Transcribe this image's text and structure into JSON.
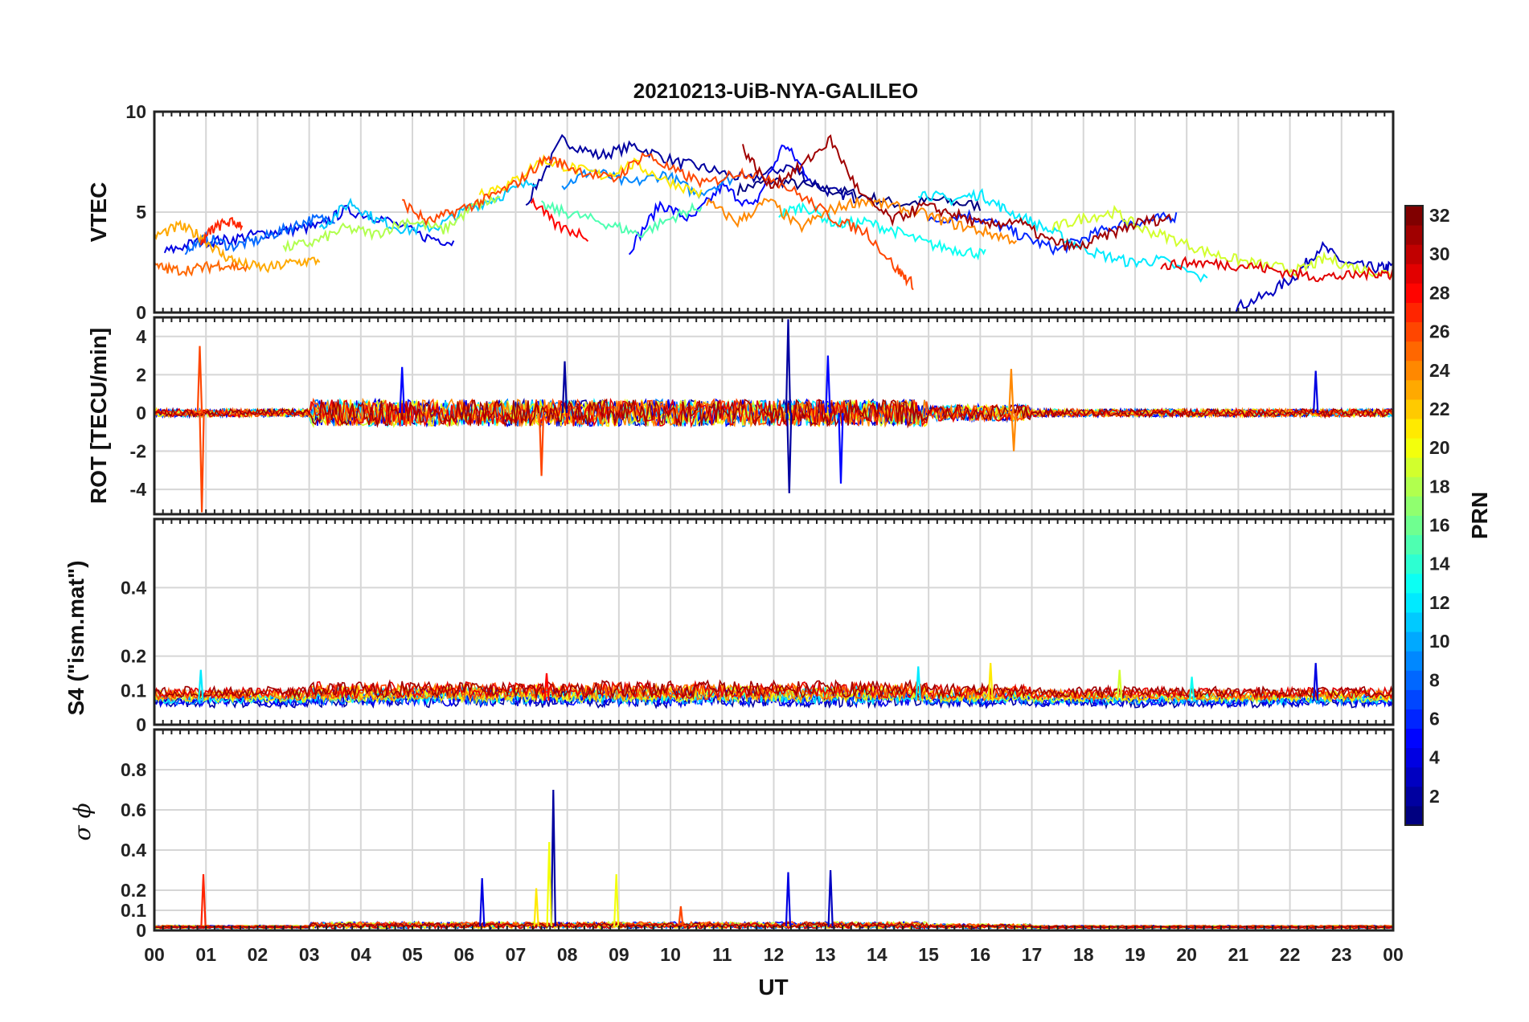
{
  "title": "20210213-UiB-NYA-GALILEO",
  "chart_data": [
    {
      "type": "line",
      "panel": "vtec",
      "ylabel": "VTEC",
      "ylim": [
        0,
        10
      ],
      "yticks": [
        0,
        5,
        10
      ],
      "grid": true,
      "series": [
        {
          "prn": 1,
          "x": [
            11.3,
            12.0,
            12.8,
            13.6,
            14.4,
            15.2,
            16.0
          ],
          "y": [
            6.1,
            6.6,
            6.2,
            5.9,
            5.4,
            5.6,
            5.3
          ]
        },
        {
          "prn": 2,
          "x": [
            7.2,
            7.9,
            8.6,
            9.3,
            10.1,
            10.8,
            11.5,
            12.3,
            13.0,
            13.6
          ],
          "y": [
            5.4,
            8.6,
            7.8,
            8.3,
            7.5,
            7.1,
            6.6,
            7.3,
            6.1,
            5.7
          ]
        },
        {
          "prn": 3,
          "x": [
            20.8,
            21.5,
            22.1,
            22.6,
            23.1,
            23.7,
            24.0
          ],
          "y": [
            0.1,
            0.8,
            1.8,
            3.3,
            2.4,
            2.2,
            2.3
          ]
        },
        {
          "prn": 4,
          "x": [
            0.2,
            0.8,
            1.4,
            2.0,
            2.6,
            3.2,
            3.7,
            4.4,
            5.2,
            5.8
          ],
          "y": [
            3.0,
            3.5,
            3.6,
            3.9,
            4.1,
            4.3,
            5.1,
            4.7,
            3.8,
            3.5
          ]
        },
        {
          "prn": 5,
          "x": [
            9.2,
            9.8,
            10.4,
            11.0,
            11.6,
            12.2,
            12.7
          ],
          "y": [
            3.1,
            5.4,
            4.6,
            6.3,
            5.2,
            8.4,
            6.7
          ]
        },
        {
          "prn": 6,
          "x": [
            15.0,
            15.7,
            16.3,
            16.9,
            17.5,
            18.1,
            18.7,
            19.3,
            19.8
          ],
          "y": [
            4.5,
            4.9,
            4.4,
            3.7,
            3.1,
            3.8,
            4.4,
            4.6,
            4.8
          ]
        },
        {
          "prn": 8,
          "x": [
            0.6,
            1.0,
            1.5,
            2.0,
            2.5,
            3.0,
            3.5
          ],
          "y": [
            3.1,
            3.7,
            3.3,
            3.6,
            4.1,
            4.6,
            4.7
          ]
        },
        {
          "prn": 9,
          "x": [
            7.9,
            8.5,
            9.2,
            9.9,
            10.5,
            11.2
          ],
          "y": [
            6.3,
            7.1,
            6.4,
            6.9,
            5.9,
            6.7
          ]
        },
        {
          "prn": 11,
          "x": [
            3.2,
            3.8,
            4.3,
            4.9,
            5.5,
            6.1,
            6.7,
            7.4
          ],
          "y": [
            4.2,
            5.5,
            4.6,
            4.1,
            4.3,
            5.2,
            5.8,
            6.6
          ]
        },
        {
          "prn": 12,
          "x": [
            14.8,
            15.4,
            16.0,
            16.5,
            17.1,
            17.7,
            18.3,
            18.9,
            19.5,
            20.4
          ],
          "y": [
            6.0,
            5.6,
            5.9,
            5.1,
            4.4,
            3.6,
            2.9,
            2.5,
            2.6,
            1.6
          ]
        },
        {
          "prn": 13,
          "x": [
            12.1,
            12.6,
            13.2,
            13.8,
            14.4,
            15.0,
            15.6,
            16.1
          ],
          "y": [
            4.9,
            5.3,
            4.4,
            4.5,
            4.0,
            3.4,
            3.1,
            2.9
          ]
        },
        {
          "prn": 15,
          "x": [
            7.5,
            8.1,
            8.8,
            9.4,
            10.1,
            10.6
          ],
          "y": [
            5.3,
            4.9,
            4.4,
            3.9,
            4.8,
            5.3
          ]
        },
        {
          "prn": 18,
          "x": [
            2.5,
            3.1,
            3.7,
            4.3,
            4.9,
            5.6,
            6.2,
            6.7
          ],
          "y": [
            3.2,
            3.5,
            4.2,
            3.9,
            4.6,
            4.1,
            5.3,
            5.7
          ]
        },
        {
          "prn": 19,
          "x": [
            17.4,
            18.0,
            18.6,
            19.1,
            19.7,
            20.4,
            21.0,
            21.6,
            22.2,
            22.7,
            23.3,
            24.0
          ],
          "y": [
            4.2,
            4.7,
            5.0,
            4.2,
            3.7,
            3.0,
            2.6,
            2.3,
            2.1,
            2.7,
            2.2,
            1.9
          ]
        },
        {
          "prn": 21,
          "x": [
            6.3,
            6.9,
            7.5,
            8.1,
            8.7,
            9.3,
            9.9,
            10.6
          ],
          "y": [
            6.0,
            6.4,
            7.6,
            7.2,
            6.8,
            7.4,
            6.6,
            5.9
          ]
        },
        {
          "prn": 23,
          "x": [
            0.0,
            0.5,
            0.9,
            1.3,
            1.7,
            2.2,
            2.7,
            3.2
          ],
          "y": [
            3.8,
            4.3,
            3.8,
            2.9,
            2.4,
            2.2,
            2.5,
            2.6
          ]
        },
        {
          "prn": 24,
          "x": [
            10.7,
            11.3,
            11.9,
            12.5,
            13.1,
            13.7,
            14.3,
            14.9,
            15.5,
            16.1,
            16.7
          ],
          "y": [
            5.5,
            4.5,
            5.6,
            4.2,
            5.1,
            5.6,
            5.3,
            4.9,
            4.4,
            4.0,
            3.6
          ]
        },
        {
          "prn": 25,
          "x": [
            0.0,
            0.4,
            0.9,
            1.3,
            1.8
          ],
          "y": [
            2.3,
            2.1,
            2.2,
            2.4,
            2.2
          ]
        },
        {
          "prn": 26,
          "x": [
            4.8,
            5.3,
            5.9,
            6.4,
            7.0,
            7.6,
            8.2,
            8.9,
            9.5,
            10.1,
            10.7,
            11.3,
            11.9,
            12.6,
            13.2,
            13.8,
            14.4,
            14.7
          ],
          "y": [
            5.5,
            4.5,
            5.1,
            5.6,
            6.4,
            7.7,
            7.1,
            6.6,
            7.9,
            7.0,
            6.4,
            7.0,
            6.8,
            5.7,
            4.6,
            4.0,
            2.1,
            1.4
          ]
        },
        {
          "prn": 27,
          "x": [
            0.9,
            1.1,
            1.4,
            1.7
          ],
          "y": [
            3.4,
            4.1,
            4.5,
            4.4
          ]
        },
        {
          "prn": 28,
          "x": [
            7.3,
            7.8,
            8.4
          ],
          "y": [
            5.6,
            4.3,
            3.8
          ]
        },
        {
          "prn": 29,
          "x": [
            19.5,
            20.1,
            20.7,
            21.3,
            21.9,
            22.5,
            23.1,
            23.7,
            24.0
          ],
          "y": [
            2.3,
            2.5,
            2.4,
            2.3,
            2.0,
            1.8,
            1.8,
            2.0,
            1.9
          ]
        },
        {
          "prn": 31,
          "x": [
            11.4,
            11.9,
            12.5,
            13.1,
            13.7,
            14.3,
            14.9,
            15.5,
            16.1,
            16.7,
            17.3,
            17.9,
            18.5,
            19.1,
            19.7
          ],
          "y": [
            8.2,
            6.3,
            7.2,
            8.6,
            5.8,
            4.6,
            5.3,
            4.9,
            4.3,
            4.6,
            3.6,
            3.2,
            3.9,
            4.5,
            4.7
          ]
        }
      ]
    },
    {
      "type": "line",
      "panel": "rot",
      "ylabel": "ROT [TECU/min]",
      "ylim": [
        -5.3,
        5
      ],
      "yticks": [
        -4,
        -2,
        0,
        2,
        4
      ],
      "grid": true,
      "annotations": [
        {
          "prn": 26,
          "x": 0.88,
          "y": 3.5
        },
        {
          "prn": 26,
          "x": 0.92,
          "y": -5.2
        },
        {
          "prn": 2,
          "x": 12.28,
          "y": 4.9
        },
        {
          "prn": 2,
          "x": 12.3,
          "y": -4.2
        },
        {
          "prn": 5,
          "x": 13.05,
          "y": 3.0
        },
        {
          "prn": 5,
          "x": 13.3,
          "y": -3.7
        },
        {
          "prn": 26,
          "x": 7.5,
          "y": -3.3
        },
        {
          "prn": 24,
          "x": 16.6,
          "y": 2.3
        },
        {
          "prn": 24,
          "x": 16.65,
          "y": -2.0
        },
        {
          "prn": 4,
          "x": 22.5,
          "y": 2.2
        },
        {
          "prn": 5,
          "x": 4.8,
          "y": 2.4
        },
        {
          "prn": 2,
          "x": 7.95,
          "y": 2.7
        }
      ]
    },
    {
      "type": "line",
      "panel": "s4",
      "ylabel": "S4 (\"ism.mat\")",
      "ylim": [
        0,
        0.6
      ],
      "yticks": [
        0,
        0.1,
        0.2,
        0.4
      ],
      "grid": true,
      "annotations": [
        {
          "prn": 12,
          "x": 0.9,
          "y": 0.16
        },
        {
          "prn": 12,
          "x": 14.8,
          "y": 0.17
        },
        {
          "prn": 21,
          "x": 16.2,
          "y": 0.18
        },
        {
          "prn": 19,
          "x": 18.7,
          "y": 0.16
        },
        {
          "prn": 4,
          "x": 22.5,
          "y": 0.18
        },
        {
          "prn": 28,
          "x": 7.6,
          "y": 0.15
        },
        {
          "prn": 13,
          "x": 20.1,
          "y": 0.14
        }
      ]
    },
    {
      "type": "line",
      "panel": "sigma_phi",
      "ylim": [
        0,
        1.0
      ],
      "yticks": [
        0,
        0.1,
        0.2,
        0.4,
        0.6,
        0.8
      ],
      "grid": true,
      "annotations": [
        {
          "prn": 27,
          "x": 0.95,
          "y": 0.28
        },
        {
          "prn": 4,
          "x": 6.35,
          "y": 0.26
        },
        {
          "prn": 2,
          "x": 7.73,
          "y": 0.7
        },
        {
          "prn": 20,
          "x": 7.65,
          "y": 0.44
        },
        {
          "prn": 20,
          "x": 8.95,
          "y": 0.28
        },
        {
          "prn": 4,
          "x": 12.28,
          "y": 0.29
        },
        {
          "prn": 3,
          "x": 13.1,
          "y": 0.3
        },
        {
          "prn": 21,
          "x": 7.4,
          "y": 0.21
        },
        {
          "prn": 26,
          "x": 10.2,
          "y": 0.12
        }
      ]
    }
  ],
  "xaxis": {
    "label": "UT",
    "xlim": [
      0,
      24
    ],
    "tick_labels": [
      "00",
      "01",
      "02",
      "03",
      "04",
      "05",
      "06",
      "07",
      "08",
      "09",
      "10",
      "11",
      "12",
      "13",
      "14",
      "15",
      "16",
      "17",
      "18",
      "19",
      "20",
      "21",
      "22",
      "23",
      "00"
    ]
  },
  "colorbar": {
    "label": "PRN",
    "range": [
      1,
      32
    ],
    "tick_labels": [
      "2",
      "4",
      "6",
      "8",
      "10",
      "12",
      "14",
      "16",
      "18",
      "20",
      "22",
      "24",
      "26",
      "28",
      "30",
      "32"
    ]
  }
}
